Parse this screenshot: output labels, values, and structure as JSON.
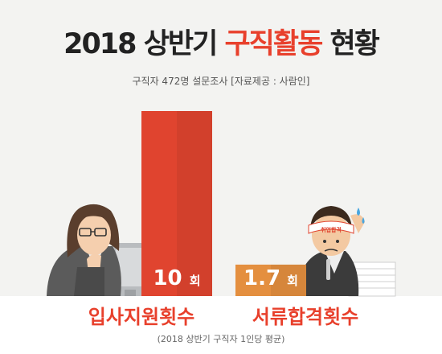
{
  "title": {
    "part1": "2018 상반기",
    "part2": "구직활동",
    "part3": "현황"
  },
  "subtitle": "구직자 472명 설문조사 [자료제공 : 사람인]",
  "footnote": "(2018 상반기 구직자 1인당 평균)",
  "colors": {
    "accent": "#e8402c",
    "bar1": "#e0442f",
    "bar2": "#e48f3f",
    "bg": "#f3f3f1"
  },
  "illustrations": {
    "left": "woman-at-computer",
    "right": "stressed-man-with-headband",
    "headband_text": "취업합격"
  },
  "chart_data": {
    "type": "bar",
    "categories": [
      "입사지원횟수",
      "서류합격횟수"
    ],
    "values": [
      10,
      1.7
    ],
    "value_labels": [
      "10",
      "1.7"
    ],
    "unit": "회",
    "ylim": [
      0,
      10
    ],
    "grid": false,
    "legend": "none",
    "colors": [
      "#e0442f",
      "#e48f3f"
    ],
    "label_colors": [
      "#e8402c",
      "#e8402c"
    ]
  }
}
